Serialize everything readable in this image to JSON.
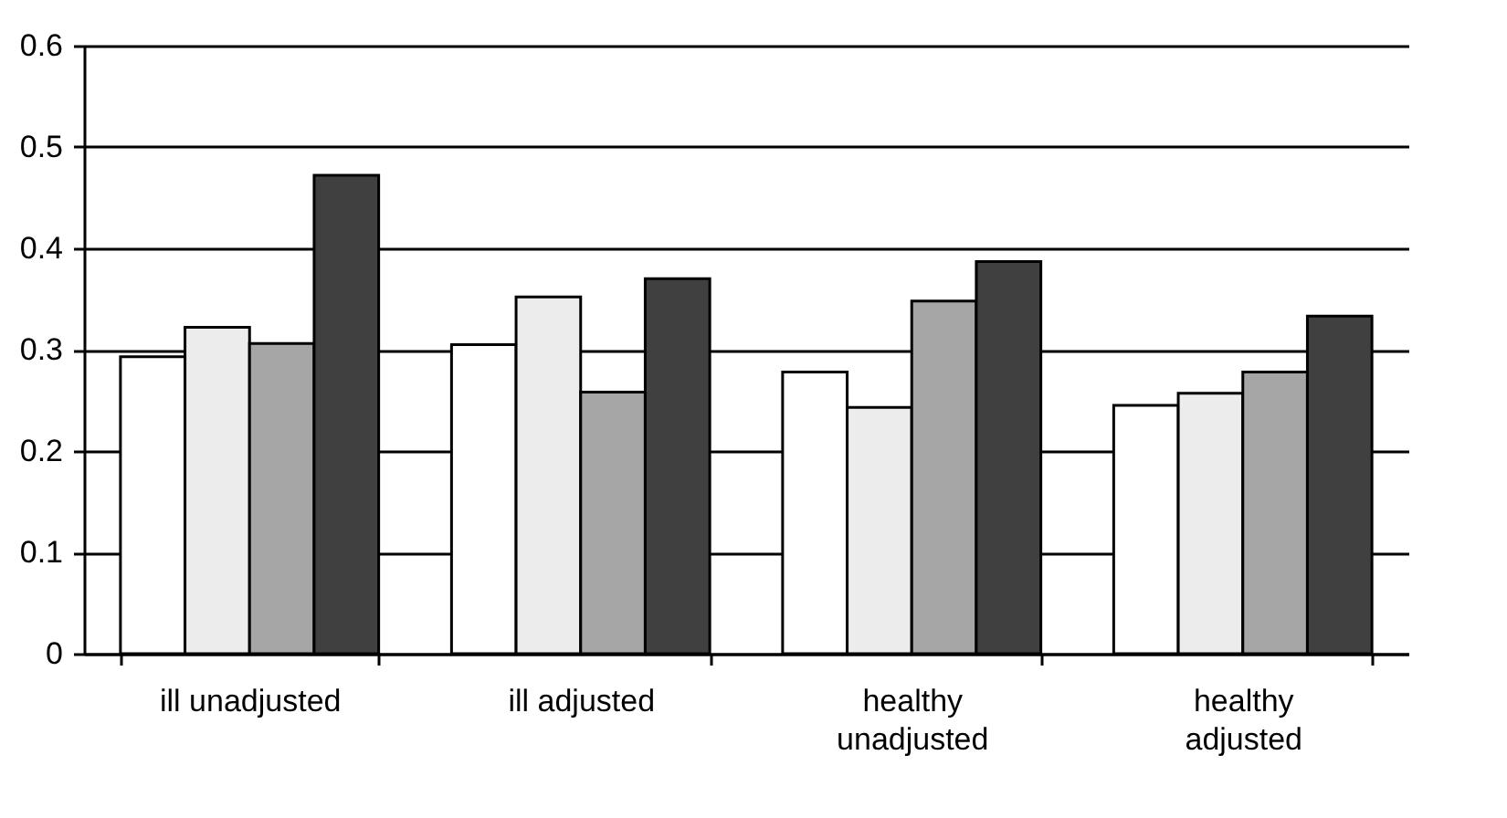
{
  "chart_data": {
    "type": "bar",
    "categories": [
      "ill unadjusted",
      "ill adjusted",
      "healthy unadjusted",
      "healthy adjusted"
    ],
    "series": [
      {
        "color": "#ffffff",
        "values": [
          0.293,
          0.305,
          0.278,
          0.245
        ]
      },
      {
        "color": "#ececec",
        "values": [
          0.322,
          0.352,
          0.243,
          0.257
        ]
      },
      {
        "color": "#a6a6a6",
        "values": [
          0.306,
          0.258,
          0.348,
          0.278
        ]
      },
      {
        "color": "#404040",
        "values": [
          0.472,
          0.37,
          0.387,
          0.333
        ]
      }
    ],
    "ylim": [
      0,
      0.6
    ],
    "yticks": [
      0,
      0.1,
      0.2,
      0.3,
      0.4,
      0.5,
      0.6
    ],
    "grid": "y"
  }
}
